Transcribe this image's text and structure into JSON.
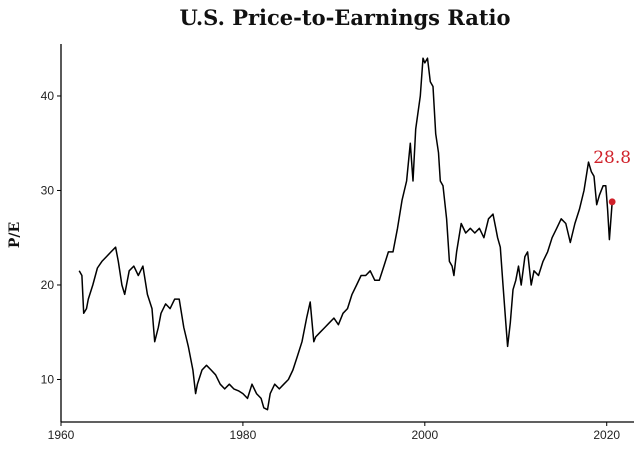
{
  "chart_data": {
    "type": "line",
    "title": "U.S. Price-to-Earnings Ratio",
    "xlabel": "",
    "ylabel": "P/E",
    "xlim": [
      1960,
      2023
    ],
    "ylim": [
      5.5,
      45.5
    ],
    "x_ticks": [
      1960,
      1980,
      2000,
      2020
    ],
    "y_ticks": [
      10,
      20,
      30,
      40
    ],
    "grid": false,
    "legend": "none",
    "series": [
      {
        "color": "#000000",
        "points": [
          [
            1962.0,
            21.5
          ],
          [
            1962.3,
            21.0
          ],
          [
            1962.5,
            17.0
          ],
          [
            1962.8,
            17.5
          ],
          [
            1963.0,
            18.5
          ],
          [
            1963.5,
            20.0
          ],
          [
            1964.0,
            21.8
          ],
          [
            1964.5,
            22.5
          ],
          [
            1965.0,
            23.0
          ],
          [
            1965.5,
            23.5
          ],
          [
            1966.0,
            24.0
          ],
          [
            1966.3,
            22.5
          ],
          [
            1966.7,
            20.0
          ],
          [
            1967.0,
            19.0
          ],
          [
            1967.5,
            21.5
          ],
          [
            1968.0,
            22.0
          ],
          [
            1968.5,
            21.0
          ],
          [
            1969.0,
            22.0
          ],
          [
            1969.5,
            19.0
          ],
          [
            1970.0,
            17.5
          ],
          [
            1970.3,
            14.0
          ],
          [
            1970.7,
            15.5
          ],
          [
            1971.0,
            17.0
          ],
          [
            1971.5,
            18.0
          ],
          [
            1972.0,
            17.5
          ],
          [
            1972.5,
            18.5
          ],
          [
            1973.0,
            18.5
          ],
          [
            1973.5,
            15.5
          ],
          [
            1974.0,
            13.5
          ],
          [
            1974.5,
            11.0
          ],
          [
            1974.8,
            8.5
          ],
          [
            1975.0,
            9.5
          ],
          [
            1975.5,
            11.0
          ],
          [
            1976.0,
            11.5
          ],
          [
            1976.5,
            11.0
          ],
          [
            1977.0,
            10.5
          ],
          [
            1977.5,
            9.5
          ],
          [
            1978.0,
            9.0
          ],
          [
            1978.5,
            9.5
          ],
          [
            1979.0,
            9.0
          ],
          [
            1979.5,
            8.8
          ],
          [
            1980.0,
            8.5
          ],
          [
            1980.5,
            8.0
          ],
          [
            1981.0,
            9.5
          ],
          [
            1981.5,
            8.5
          ],
          [
            1982.0,
            8.0
          ],
          [
            1982.3,
            7.0
          ],
          [
            1982.7,
            6.8
          ],
          [
            1983.0,
            8.5
          ],
          [
            1983.5,
            9.5
          ],
          [
            1984.0,
            9.0
          ],
          [
            1984.5,
            9.5
          ],
          [
            1985.0,
            10.0
          ],
          [
            1985.5,
            11.0
          ],
          [
            1986.0,
            12.5
          ],
          [
            1986.5,
            14.0
          ],
          [
            1987.0,
            16.5
          ],
          [
            1987.4,
            18.2
          ],
          [
            1987.8,
            14.0
          ],
          [
            1988.0,
            14.5
          ],
          [
            1988.5,
            15.0
          ],
          [
            1989.0,
            15.5
          ],
          [
            1989.5,
            16.0
          ],
          [
            1990.0,
            16.5
          ],
          [
            1990.5,
            15.8
          ],
          [
            1991.0,
            17.0
          ],
          [
            1991.5,
            17.5
          ],
          [
            1992.0,
            19.0
          ],
          [
            1992.5,
            20.0
          ],
          [
            1993.0,
            21.0
          ],
          [
            1993.5,
            21.0
          ],
          [
            1994.0,
            21.5
          ],
          [
            1994.5,
            20.5
          ],
          [
            1995.0,
            20.5
          ],
          [
            1995.5,
            22.0
          ],
          [
            1996.0,
            23.5
          ],
          [
            1996.5,
            23.5
          ],
          [
            1997.0,
            26.0
          ],
          [
            1997.5,
            29.0
          ],
          [
            1998.0,
            31.0
          ],
          [
            1998.4,
            35.0
          ],
          [
            1998.7,
            31.0
          ],
          [
            1999.0,
            36.5
          ],
          [
            1999.5,
            40.0
          ],
          [
            1999.8,
            44.0
          ],
          [
            2000.0,
            43.5
          ],
          [
            2000.3,
            44.0
          ],
          [
            2000.6,
            41.5
          ],
          [
            2000.9,
            41.0
          ],
          [
            2001.2,
            36.0
          ],
          [
            2001.5,
            34.0
          ],
          [
            2001.7,
            31.0
          ],
          [
            2002.0,
            30.5
          ],
          [
            2002.4,
            27.0
          ],
          [
            2002.7,
            22.5
          ],
          [
            2003.0,
            22.0
          ],
          [
            2003.2,
            21.0
          ],
          [
            2003.5,
            23.5
          ],
          [
            2004.0,
            26.5
          ],
          [
            2004.5,
            25.5
          ],
          [
            2005.0,
            26.0
          ],
          [
            2005.5,
            25.5
          ],
          [
            2006.0,
            26.0
          ],
          [
            2006.5,
            25.0
          ],
          [
            2007.0,
            27.0
          ],
          [
            2007.5,
            27.5
          ],
          [
            2007.8,
            26.0
          ],
          [
            2008.0,
            25.0
          ],
          [
            2008.3,
            24.0
          ],
          [
            2008.6,
            20.0
          ],
          [
            2008.9,
            16.0
          ],
          [
            2009.1,
            13.5
          ],
          [
            2009.4,
            16.0
          ],
          [
            2009.7,
            19.5
          ],
          [
            2010.0,
            20.5
          ],
          [
            2010.3,
            22.0
          ],
          [
            2010.6,
            20.0
          ],
          [
            2011.0,
            23.0
          ],
          [
            2011.3,
            23.5
          ],
          [
            2011.7,
            20.0
          ],
          [
            2012.0,
            21.5
          ],
          [
            2012.5,
            21.0
          ],
          [
            2013.0,
            22.5
          ],
          [
            2013.5,
            23.5
          ],
          [
            2014.0,
            25.0
          ],
          [
            2014.5,
            26.0
          ],
          [
            2015.0,
            27.0
          ],
          [
            2015.5,
            26.5
          ],
          [
            2016.0,
            24.5
          ],
          [
            2016.5,
            26.5
          ],
          [
            2017.0,
            28.0
          ],
          [
            2017.5,
            30.0
          ],
          [
            2018.0,
            33.0
          ],
          [
            2018.3,
            32.0
          ],
          [
            2018.6,
            31.5
          ],
          [
            2018.9,
            28.5
          ],
          [
            2019.2,
            29.5
          ],
          [
            2019.6,
            30.5
          ],
          [
            2019.9,
            30.5
          ],
          [
            2020.1,
            28.0
          ],
          [
            2020.3,
            24.8
          ],
          [
            2020.6,
            28.8
          ]
        ]
      }
    ],
    "annotations": [
      {
        "text": "28.8",
        "x": 2020.6,
        "y": 28.8,
        "color": "#d0212a"
      }
    ]
  }
}
